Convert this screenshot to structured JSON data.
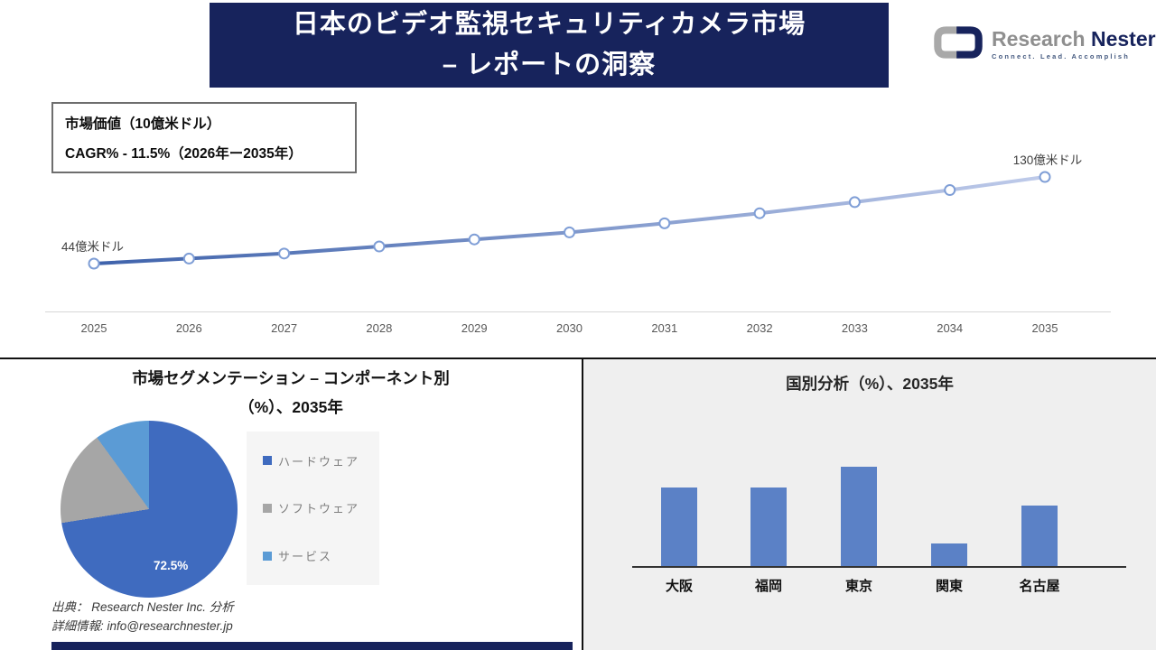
{
  "banner": {
    "line1": "日本のビデオ監視セキュリティカメラ市場",
    "line2": "– レポートの洞察"
  },
  "logo": {
    "brand_gray": "Research",
    "brand_navy": "Nester",
    "tagline": "Connect. Lead. Accomplish"
  },
  "info_box": {
    "line1": "市場価値（10億米ドル）",
    "line2": "CAGR% - 11.5%（2026年ー2035年）"
  },
  "source": {
    "line1": "出典： Research Nester Inc. 分析",
    "line2": "詳細情報: info@researchnester.jp"
  },
  "colors": {
    "navy": "#17235C",
    "line_gradient_start": "#3E62AB",
    "line_gradient_end": "#BFCBEA",
    "marker_stroke": "#7F9ED6",
    "bar": "#5B81C6",
    "pie": [
      "#3F6BBF",
      "#A6A6A6",
      "#5B9BD5"
    ]
  },
  "chart_data": [
    {
      "type": "line",
      "title": "市場価値（10億米ドル）",
      "subtitle": "CAGR% - 11.5%（2026年ー2035年）",
      "x_labels": [
        "2025",
        "2026",
        "2027",
        "2028",
        "2029",
        "2030",
        "2031",
        "2032",
        "2033",
        "2034",
        "2035"
      ],
      "values": [
        4.4,
        4.9,
        5.4,
        6.1,
        6.8,
        7.5,
        8.4,
        9.4,
        10.5,
        11.7,
        13.0
      ],
      "first_label": "44億米ドル",
      "last_label": "130億米ドル",
      "ylabel": "10億米ドル",
      "ylim": [
        4,
        14
      ],
      "grid": false
    },
    {
      "type": "pie",
      "title_line1": "市場セグメンテーション – コンポーネント別",
      "title_line2": "（%）、2035年",
      "labels": [
        "ハードウェア",
        "ソフトウェア",
        "サービス"
      ],
      "values": [
        72.5,
        17.5,
        10
      ],
      "shown_label": "72.5%",
      "legend_position": "right"
    },
    {
      "type": "bar",
      "title": "国別分析（%）、2035年",
      "categories": [
        "大阪",
        "福岡",
        "東京",
        "関東",
        "名古屋"
      ],
      "values": [
        26,
        26,
        33,
        7.5,
        20
      ],
      "ylim": [
        0,
        42
      ],
      "grid": false
    }
  ]
}
